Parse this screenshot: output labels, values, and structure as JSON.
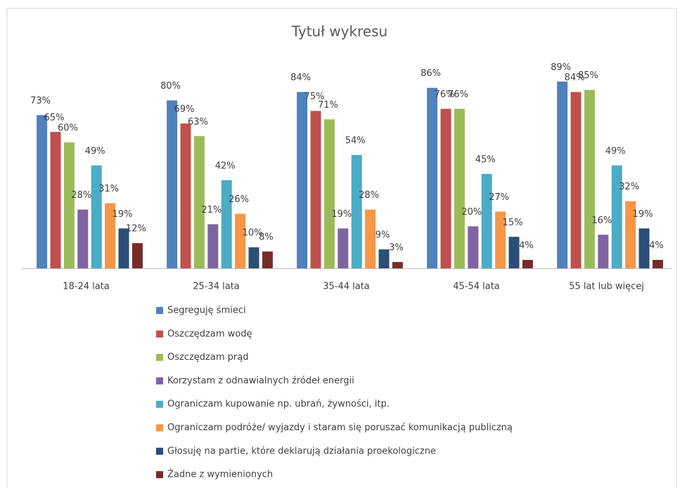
{
  "chart_data": {
    "type": "bar",
    "title": "Tytuł wykresu",
    "categories": [
      "18-24 lata",
      "25-34 lata",
      "35-44 lata",
      "45-54 lata",
      "55 lat lub więcej"
    ],
    "series": [
      {
        "name": "Segreguję śmieci",
        "color": "#4f81bd",
        "values": [
          73,
          80,
          84,
          86,
          89
        ],
        "value_labels": [
          "73%",
          "80%",
          "84%",
          "86%",
          "89%"
        ]
      },
      {
        "name": "Oszczędzam wodę",
        "color": "#c0504d",
        "values": [
          65,
          69,
          75,
          76,
          84
        ],
        "value_labels": [
          "65%",
          "69%",
          "75%",
          "76%",
          "84%"
        ]
      },
      {
        "name": "Oszczędzam prąd",
        "color": "#9bbb59",
        "values": [
          60,
          63,
          71,
          76,
          85
        ],
        "value_labels": [
          "60%",
          "63%",
          "71%",
          "76%",
          "85%"
        ]
      },
      {
        "name": "Korzystam z odnawialnych źródeł energii",
        "color": "#8064a2",
        "values": [
          28,
          21,
          19,
          20,
          16
        ],
        "value_labels": [
          "28%",
          "21%",
          "19%",
          "20%",
          "16%"
        ]
      },
      {
        "name": "Ograniczam kupowanie np. ubrań, żywności, itp.",
        "color": "#4bacc6",
        "values": [
          49,
          42,
          54,
          45,
          49
        ],
        "value_labels": [
          "49%",
          "42%",
          "54%",
          "45%",
          "49%"
        ]
      },
      {
        "name": "Ograniczam podróże/ wyjazdy i staram się poruszać komunikacją publiczną",
        "color": "#f79646",
        "values": [
          31,
          26,
          28,
          27,
          32
        ],
        "value_labels": [
          "31%",
          "26%",
          "28%",
          "27%",
          "32%"
        ]
      },
      {
        "name": "Głosuję na partie, które deklarują działania proekologiczne",
        "color": "#2c4d75",
        "values": [
          19,
          10,
          9,
          15,
          19
        ],
        "value_labels": [
          "19%",
          "10%",
          "9%",
          "15%",
          "19%"
        ]
      },
      {
        "name": "Żadne z wymienionych",
        "color": "#772c2a",
        "values": [
          12,
          8,
          3,
          4,
          4
        ],
        "value_labels": [
          "12%",
          "8%",
          "3%",
          "4%",
          "4%"
        ]
      }
    ]
  }
}
